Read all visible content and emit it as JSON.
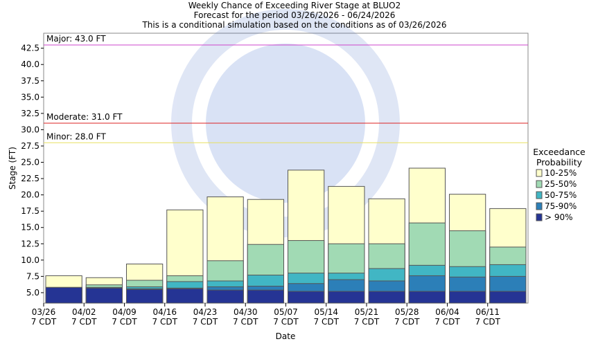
{
  "chart_data": {
    "type": "bar",
    "title": "Weekly Chance of Exceeding River Stage at BLUO2",
    "subtitle": "Forecast for the period 03/26/2026 - 06/24/2026",
    "note": "This is a conditional simulation based on the conditions as of 03/26/2026",
    "y_label": "Stage (FT)",
    "x_label": "Date",
    "categories": [
      "03/26",
      "04/02",
      "04/09",
      "04/16",
      "04/23",
      "04/30",
      "05/07",
      "05/14",
      "05/21",
      "05/28",
      "06/04",
      "06/11"
    ],
    "category_sublabel": "7 CDT",
    "series": [
      {
        "name": "10-25%",
        "color": "#ffffcc",
        "values": [
          7.6,
          7.3,
          9.4,
          17.7,
          19.7,
          19.3,
          23.8,
          21.3,
          19.4,
          24.1,
          20.1,
          17.9
        ]
      },
      {
        "name": "25-50%",
        "color": "#a1dab4",
        "values": [
          5.8,
          6.2,
          6.9,
          7.6,
          9.9,
          12.4,
          13.0,
          12.5,
          12.5,
          15.7,
          14.5,
          12.0
        ]
      },
      {
        "name": "50-75%",
        "color": "#41b6c4",
        "values": [
          5.8,
          5.8,
          5.9,
          6.7,
          6.8,
          7.7,
          8.0,
          8.0,
          8.7,
          9.2,
          9.0,
          9.3
        ]
      },
      {
        "name": "75-90%",
        "color": "#2c7fb8",
        "values": [
          5.8,
          5.8,
          5.6,
          5.7,
          5.9,
          6.0,
          6.4,
          7.0,
          6.8,
          7.6,
          7.4,
          7.5
        ]
      },
      {
        "name": "> 90%",
        "color": "#253494",
        "values": [
          5.8,
          5.7,
          5.5,
          5.6,
          5.4,
          5.4,
          5.2,
          5.2,
          5.2,
          5.2,
          5.2,
          5.2
        ]
      }
    ],
    "legend_title": "Exceedance Probability",
    "thresholds": [
      {
        "label": "Major: 43.0 FT",
        "value": 43.0,
        "color": "#cc44cc"
      },
      {
        "label": "Moderate: 31.0 FT",
        "value": 31.0,
        "color": "#dd2222"
      },
      {
        "label": "Minor: 28.0 FT",
        "value": 28.0,
        "color": "#e8e060"
      }
    ],
    "ylim": [
      3.4,
      44.8
    ],
    "yticks": [
      {
        "value": 5,
        "label": "5.0"
      },
      {
        "value": 7.5,
        "label": "7.5"
      },
      {
        "value": 10,
        "label": "10.0"
      },
      {
        "value": 12.5,
        "label": "12.5"
      },
      {
        "value": 15,
        "label": "15.0"
      },
      {
        "value": 17.5,
        "label": "17.5"
      },
      {
        "value": 20,
        "label": "20.0"
      },
      {
        "value": 22.5,
        "label": "22.5"
      },
      {
        "value": 25,
        "label": "25.0"
      },
      {
        "value": 27.5,
        "label": "27.5"
      },
      {
        "value": 30,
        "label": "30.0"
      },
      {
        "value": 32.5,
        "label": "32.5"
      },
      {
        "value": 35,
        "label": "35.0"
      },
      {
        "value": 37.5,
        "label": "37.5"
      },
      {
        "value": 40,
        "label": "40.0"
      },
      {
        "value": 42.5,
        "label": "42.5"
      }
    ]
  }
}
